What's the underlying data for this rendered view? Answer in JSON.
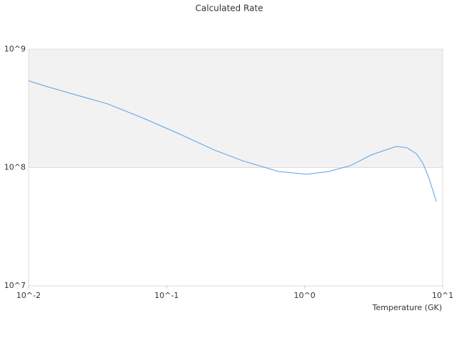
{
  "chart_data": {
    "type": "line",
    "title": "Calculated Rate",
    "x_label": "Temperature (GK)",
    "xscale": "log",
    "yscale": "log",
    "xlim": [
      0.01,
      10
    ],
    "ylim": [
      10000000,
      1000000000
    ],
    "xticks": [
      {
        "value": 0.01,
        "label": "10^-2"
      },
      {
        "value": 0.1,
        "label": "10^-1"
      },
      {
        "value": 1,
        "label": "10^0"
      },
      {
        "value": 10,
        "label": "10^1"
      }
    ],
    "yticks": [
      {
        "value": 10000000,
        "label": "10^7"
      },
      {
        "value": 100000000,
        "label": "10^8"
      },
      {
        "value": 1000000000,
        "label": "10^9"
      }
    ],
    "plot_band": {
      "from": 100000000,
      "to": 1000000000,
      "color": "#f2f2f2"
    },
    "series": [
      {
        "color": "#5aa0e6",
        "x": [
          0.01,
          0.0135,
          0.0204,
          0.037,
          0.067,
          0.122,
          0.221,
          0.356,
          0.647,
          1.04,
          1.49,
          2.13,
          3.04,
          4.61,
          5.52,
          6.44,
          7.18,
          7.98,
          8.99
        ],
        "values": [
          542000000,
          485000000,
          422000000,
          347000000,
          263000000,
          194000000,
          141000000,
          114000000,
          92700000,
          87700000,
          92700000,
          103500000,
          128000000,
          151000000,
          147000000,
          131000000,
          109000000,
          80500000,
          51600000
        ]
      }
    ]
  }
}
